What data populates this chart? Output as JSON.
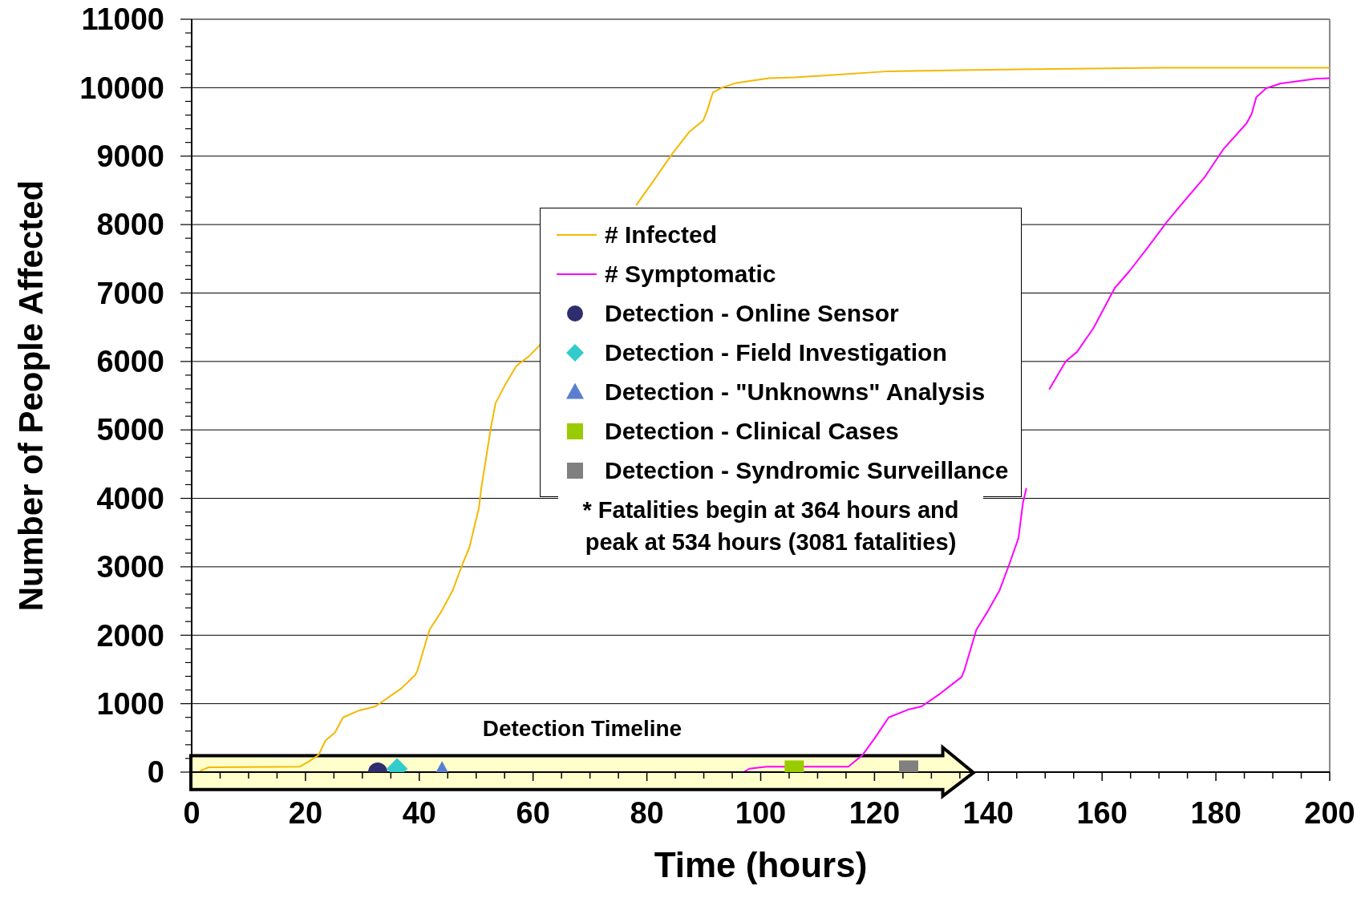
{
  "chart_data": {
    "type": "line",
    "xlabel": "Time (hours)",
    "ylabel": "Number of People Affected",
    "xlim": [
      0,
      200
    ],
    "ylim": [
      0,
      11000
    ],
    "xticks": [
      0,
      {
        "value": 5,
        "label": null
      },
      {
        "value": 10,
        "label": null
      },
      {
        "value": 15,
        "label": null
      },
      20,
      {
        "value": 25,
        "label": null
      },
      {
        "value": 30,
        "label": null
      },
      {
        "value": 35,
        "label": null
      },
      40,
      {
        "value": 45,
        "label": null
      },
      {
        "value": 50,
        "label": null
      },
      {
        "value": 55,
        "label": null
      },
      60,
      {
        "value": 65,
        "label": null
      },
      {
        "value": 70,
        "label": null
      },
      {
        "value": 75,
        "label": null
      },
      80,
      {
        "value": 85,
        "label": null
      },
      {
        "value": 90,
        "label": null
      },
      {
        "value": 95,
        "label": null
      },
      100,
      {
        "value": 105,
        "label": null
      },
      {
        "value": 110,
        "label": null
      },
      {
        "value": 115,
        "label": null
      },
      120,
      {
        "value": 125,
        "label": null
      },
      {
        "value": 130,
        "label": null
      },
      {
        "value": 135,
        "label": null
      },
      140,
      {
        "value": 145,
        "label": null
      },
      {
        "value": 150,
        "label": null
      },
      {
        "value": 155,
        "label": null
      },
      160,
      {
        "value": 165,
        "label": null
      },
      {
        "value": 170,
        "label": null
      },
      {
        "value": 175,
        "label": null
      },
      180,
      {
        "value": 185,
        "label": null
      },
      {
        "value": 190,
        "label": null
      },
      {
        "value": 195,
        "label": null
      },
      200
    ],
    "yticks": [
      0,
      {
        "value": 200,
        "label": null
      },
      {
        "value": 400,
        "label": null
      },
      {
        "value": 600,
        "label": null
      },
      {
        "value": 800,
        "label": null
      },
      1000,
      {
        "value": 1200,
        "label": null
      },
      {
        "value": 1400,
        "label": null
      },
      {
        "value": 1600,
        "label": null
      },
      {
        "value": 1800,
        "label": null
      },
      2000,
      {
        "value": 2200,
        "label": null
      },
      {
        "value": 2400,
        "label": null
      },
      {
        "value": 2600,
        "label": null
      },
      {
        "value": 2800,
        "label": null
      },
      3000,
      {
        "value": 3200,
        "label": null
      },
      {
        "value": 3400,
        "label": null
      },
      {
        "value": 3600,
        "label": null
      },
      {
        "value": 3800,
        "label": null
      },
      4000,
      {
        "value": 4200,
        "label": null
      },
      {
        "value": 4400,
        "label": null
      },
      {
        "value": 4600,
        "label": null
      },
      {
        "value": 4800,
        "label": null
      },
      5000,
      {
        "value": 5200,
        "label": null
      },
      {
        "value": 5400,
        "label": null
      },
      {
        "value": 5600,
        "label": null
      },
      {
        "value": 5800,
        "label": null
      },
      6000,
      {
        "value": 6200,
        "label": null
      },
      {
        "value": 6400,
        "label": null
      },
      {
        "value": 6600,
        "label": null
      },
      {
        "value": 6800,
        "label": null
      },
      7000,
      {
        "value": 7200,
        "label": null
      },
      {
        "value": 7400,
        "label": null
      },
      {
        "value": 7600,
        "label": null
      },
      {
        "value": 7800,
        "label": null
      },
      8000,
      {
        "value": 8200,
        "label": null
      },
      {
        "value": 8400,
        "label": null
      },
      {
        "value": 8600,
        "label": null
      },
      {
        "value": 8800,
        "label": null
      },
      9000,
      {
        "value": 9200,
        "label": null
      },
      {
        "value": 9400,
        "label": null
      },
      {
        "value": 9600,
        "label": null
      },
      {
        "value": 9800,
        "label": null
      },
      10000,
      {
        "value": 10200,
        "label": null
      },
      {
        "value": 10400,
        "label": null
      },
      {
        "value": 10600,
        "label": null
      },
      {
        "value": 10800,
        "label": null
      },
      11000
    ],
    "grid": "y",
    "legend": "top",
    "annotations": [
      "Detection Timeline",
      "* Fatalities begin at 364 hours and peak at 534 hours (3081 fatalities)"
    ],
    "series": [
      {
        "name": "# Infected",
        "color": "#f5b800",
        "marker": "none",
        "x": [
          1.5,
          3,
          19,
          20.5,
          22.3,
          23.5,
          25.2,
          26.6,
          29.4,
          32.3,
          36.8,
          39.3,
          39.7,
          41.8,
          43.9,
          45.9,
          47.6,
          48.8,
          50.5,
          50.9,
          52.6,
          53.4,
          55.1,
          57.1,
          59.2,
          61.3,
          70,
          78.1,
          81.6,
          84.5,
          87.4,
          89.9,
          90.7,
          91.6,
          93.2,
          95.7,
          101.5,
          105.9,
          122.5,
          137.4,
          170.6,
          200
        ],
        "values": [
          20,
          70,
          80,
          150,
          250,
          460,
          580,
          800,
          900,
          960,
          1220,
          1420,
          1490,
          2080,
          2350,
          2660,
          3040,
          3280,
          3870,
          4150,
          5040,
          5390,
          5660,
          5940,
          6070,
          6250,
          null,
          8280,
          8690,
          9040,
          9350,
          9520,
          9690,
          9930,
          10000,
          10070,
          10140,
          10150,
          10240,
          10260,
          10290,
          10290
        ]
      },
      {
        "name": "# Symptomatic",
        "color": "#ff00ff",
        "marker": "none",
        "x": [
          1.5,
          97,
          98,
          101,
          115.4,
          117.9,
          120,
          122.5,
          125.8,
          128.3,
          131.6,
          135.3,
          135.8,
          137.9,
          139.9,
          142,
          143.7,
          145.3,
          146.1,
          146.7,
          148.5,
          150.7,
          153.6,
          155.6,
          158.5,
          162.2,
          164.7,
          167.6,
          171.4,
          173.8,
          178,
          181.3,
          185.4,
          186.3,
          187.1,
          188.8,
          191.3,
          197.5,
          200
        ],
        "values": [
          0,
          0,
          50,
          80,
          80,
          250,
          490,
          800,
          910,
          960,
          1150,
          1390,
          1490,
          2080,
          2350,
          2660,
          3040,
          3420,
          3940,
          4150,
          null,
          5590,
          6000,
          6140,
          6490,
          7070,
          7310,
          7620,
          8040,
          8280,
          8690,
          9100,
          9480,
          9620,
          9860,
          9990,
          10060,
          10130,
          10140
        ]
      },
      {
        "name": "Detection - Online Sensor",
        "type": "scatter",
        "color": "#2e2e6e",
        "marker": "circle",
        "x": [
          32.7
        ],
        "values": [
          0
        ]
      },
      {
        "name": "Detection - Field Investigation",
        "type": "scatter",
        "color": "#33cccc",
        "marker": "diamond",
        "x": [
          36.1
        ],
        "values": [
          50
        ]
      },
      {
        "name": "Detection - \"Unknowns\" Analysis",
        "type": "scatter",
        "color": "#5a7fd0",
        "marker": "triangle",
        "x": [
          44
        ],
        "values": [
          0
        ]
      },
      {
        "name": "Detection - Clinical Cases",
        "type": "scatter",
        "color": "#99cc00",
        "marker": "square",
        "x": [
          105.9
        ],
        "values": [
          30
        ]
      },
      {
        "name": "Detection - Syndromic Surveillance",
        "type": "scatter",
        "color": "#808080",
        "marker": "square",
        "x": [
          126
        ],
        "values": [
          30
        ]
      }
    ]
  }
}
